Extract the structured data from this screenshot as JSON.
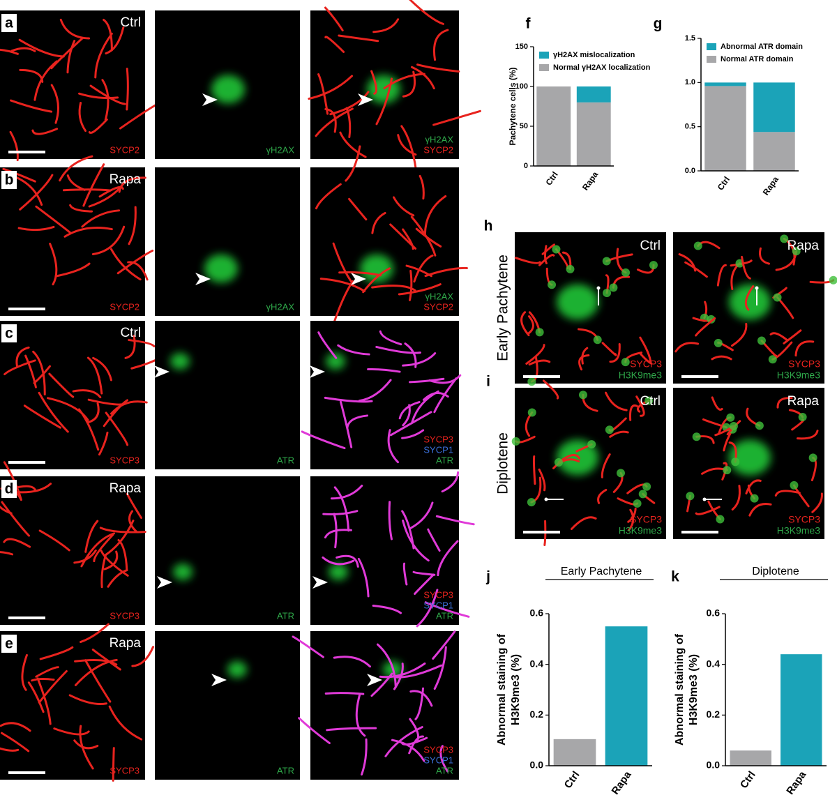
{
  "microscopy": [
    {
      "letter": "a",
      "condition": "Ctrl",
      "channels": [
        [
          {
            "text": "SYCP2",
            "color": "#e8231e"
          }
        ],
        [
          {
            "text": "γH2AX",
            "color": "#2fa84a"
          }
        ],
        [
          {
            "text": "γH2AX",
            "color": "#2fa84a"
          },
          {
            "text": "SYCP2",
            "color": "#e8231e"
          }
        ]
      ]
    },
    {
      "letter": "b",
      "condition": "Rapa",
      "channels": [
        [
          {
            "text": "SYCP2",
            "color": "#e8231e"
          }
        ],
        [
          {
            "text": "γH2AX",
            "color": "#2fa84a"
          }
        ],
        [
          {
            "text": "γH2AX",
            "color": "#2fa84a"
          },
          {
            "text": "SYCP2",
            "color": "#e8231e"
          }
        ]
      ]
    },
    {
      "letter": "c",
      "condition": "Ctrl",
      "channels": [
        [
          {
            "text": "SYCP3",
            "color": "#e8231e"
          }
        ],
        [
          {
            "text": "ATR",
            "color": "#2fa84a"
          }
        ],
        [
          {
            "text": "SYCP3",
            "color": "#e8231e"
          },
          {
            "text": "SYCP1",
            "color": "#3a6fd8"
          },
          {
            "text": "ATR",
            "color": "#2fa84a"
          }
        ]
      ]
    },
    {
      "letter": "d",
      "condition": "Rapa",
      "channels": [
        [
          {
            "text": "SYCP3",
            "color": "#e8231e"
          }
        ],
        [
          {
            "text": "ATR",
            "color": "#2fa84a"
          }
        ],
        [
          {
            "text": "SYCP3",
            "color": "#e8231e"
          },
          {
            "text": "SYCP1",
            "color": "#3a6fd8"
          },
          {
            "text": "ATR",
            "color": "#2fa84a"
          }
        ]
      ]
    },
    {
      "letter": "e",
      "condition": "Rapa",
      "channels": [
        [
          {
            "text": "SYCP3",
            "color": "#e8231e"
          }
        ],
        [
          {
            "text": "ATR",
            "color": "#2fa84a"
          }
        ],
        [
          {
            "text": "SYCP3",
            "color": "#e8231e"
          },
          {
            "text": "SYCP1",
            "color": "#3a6fd8"
          },
          {
            "text": "ATR",
            "color": "#2fa84a"
          }
        ]
      ]
    }
  ],
  "stage_panels": [
    {
      "letter": "h",
      "stage": "Early Pachytene",
      "images": [
        {
          "condition": "Ctrl",
          "channels": [
            {
              "text": "SYCP3",
              "color": "#e8231e"
            },
            {
              "text": "H3K9me3",
              "color": "#2fa84a"
            }
          ]
        },
        {
          "condition": "Rapa",
          "channels": [
            {
              "text": "SYCP3",
              "color": "#e8231e"
            },
            {
              "text": "H3K9me3",
              "color": "#2fa84a"
            }
          ]
        }
      ]
    },
    {
      "letter": "i",
      "stage": "Diplotene",
      "images": [
        {
          "condition": "Ctrl",
          "channels": [
            {
              "text": "SYCP3",
              "color": "#e8231e"
            },
            {
              "text": "H3K9me3",
              "color": "#2fa84a"
            }
          ]
        },
        {
          "condition": "Rapa",
          "channels": [
            {
              "text": "SYCP3",
              "color": "#e8231e"
            },
            {
              "text": "H3K9me3",
              "color": "#2fa84a"
            }
          ]
        }
      ]
    }
  ],
  "chart_data": [
    {
      "type": "stacked_bar",
      "letter": "f",
      "ylabel": [
        "Pachytene cells (%)"
      ],
      "categories": [
        "Ctrl",
        "Rapa"
      ],
      "series": [
        {
          "name": "Normal γH2AX localization",
          "color": "#a7a7a9",
          "values": [
            100,
            80
          ]
        },
        {
          "name": "γH2AX mislocalization",
          "color": "#1ba3b8",
          "values": [
            0,
            20
          ]
        }
      ],
      "ylim": [
        0,
        150
      ],
      "yticks": [
        0,
        50,
        100,
        150
      ],
      "legend": "upper left"
    },
    {
      "type": "stacked_bar",
      "letter": "g",
      "categories": [
        "Ctrl",
        "Rapa"
      ],
      "series": [
        {
          "name": "Normal ATR domain",
          "color": "#a7a7a9",
          "values": [
            0.96,
            0.44
          ]
        },
        {
          "name": "Abnormal ATR domain",
          "color": "#1ba3b8",
          "values": [
            0.04,
            0.56
          ]
        }
      ],
      "ylim": [
        0,
        1.5
      ],
      "yticks": [
        {
          "value": 0,
          "label": "0.0"
        },
        0.5,
        {
          "value": 1,
          "label": "1.0"
        },
        1.5
      ],
      "legend": "upper left"
    },
    {
      "type": "bar",
      "letter": "j",
      "title": "Early Pachytene",
      "ylabel": [
        "Abnormal staining of",
        "H3K9me3 (%)"
      ],
      "categories": [
        "Ctrl",
        "Rapa"
      ],
      "values": [
        0.105,
        0.55
      ],
      "colors": [
        "#a7a7a9",
        "#1ba3b8"
      ],
      "ylim": [
        0,
        0.6
      ],
      "yticks": [
        {
          "value": 0,
          "label": "0.0"
        },
        0.2,
        0.4,
        0.6
      ]
    },
    {
      "type": "bar",
      "letter": "k",
      "title": "Diplotene",
      "ylabel": [
        "Abnormal staining of",
        "H3K9me3 (%)"
      ],
      "categories": [
        "Ctrl",
        "Rapa"
      ],
      "values": [
        0.06,
        0.44
      ],
      "colors": [
        "#a7a7a9",
        "#1ba3b8"
      ],
      "ylim": [
        0,
        0.6
      ],
      "yticks": [
        {
          "value": 0,
          "label": "0.0"
        },
        0.2,
        0.4,
        0.6
      ]
    }
  ]
}
